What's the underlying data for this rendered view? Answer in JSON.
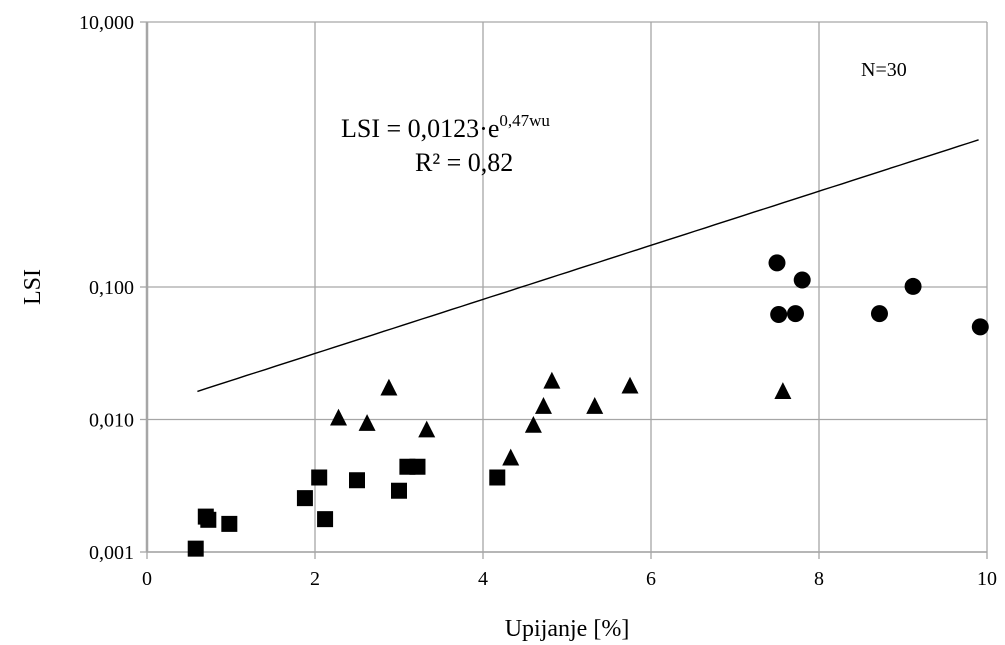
{
  "chart_data": {
    "type": "scatter",
    "title": "",
    "xlabel": "Upijanje [%]",
    "ylabel": "LSI",
    "xlim": [
      0,
      10
    ],
    "ylim": [
      0.001,
      10
    ],
    "y_scale": "log",
    "grid": true,
    "x_ticks": [
      0,
      2,
      4,
      6,
      8,
      10
    ],
    "x_tick_labels": [
      "0",
      "2",
      "4",
      "6",
      "8",
      "10"
    ],
    "y_ticks": [
      0.001,
      0.01,
      0.1,
      10
    ],
    "y_tick_labels": [
      "0,001",
      "0,010",
      "0,100",
      "10,000"
    ],
    "annotations": {
      "equation_main": "LSI = 0,0123·e",
      "equation_exp": "0,47wu",
      "r_squared": "R² = 0,82",
      "n_label": "N=30"
    },
    "trendline": {
      "type": "exponential",
      "a": 0.0123,
      "b": 0.47,
      "x_range": [
        0.6,
        9.9
      ]
    },
    "series": [
      {
        "marker": "square",
        "x": [
          0.58,
          0.7,
          0.73,
          0.98,
          1.88,
          2.05,
          2.12,
          2.5,
          3.0,
          3.1,
          3.22,
          4.17
        ],
        "y": [
          0.00106,
          0.00185,
          0.00175,
          0.00163,
          0.00255,
          0.00365,
          0.00177,
          0.00348,
          0.0029,
          0.0044,
          0.0044,
          0.00365
        ]
      },
      {
        "marker": "triangle",
        "x": [
          2.28,
          2.62,
          2.88,
          3.33,
          4.33,
          4.6,
          4.72,
          4.82,
          5.33,
          5.75,
          7.57
        ],
        "y": [
          0.0102,
          0.0093,
          0.0172,
          0.0083,
          0.0051,
          0.009,
          0.0125,
          0.0194,
          0.0125,
          0.0178,
          0.0162
        ]
      },
      {
        "marker": "circle",
        "x": [
          7.5,
          7.52,
          7.72,
          7.8,
          8.72,
          9.12,
          9.92
        ],
        "y": [
          0.152,
          0.062,
          0.063,
          0.113,
          0.063,
          0.101,
          0.05
        ]
      }
    ],
    "colors": {
      "markers": "#000000",
      "grid": "#a6a6a6",
      "axis": "#a6a6a6",
      "trend": "#000000"
    }
  }
}
